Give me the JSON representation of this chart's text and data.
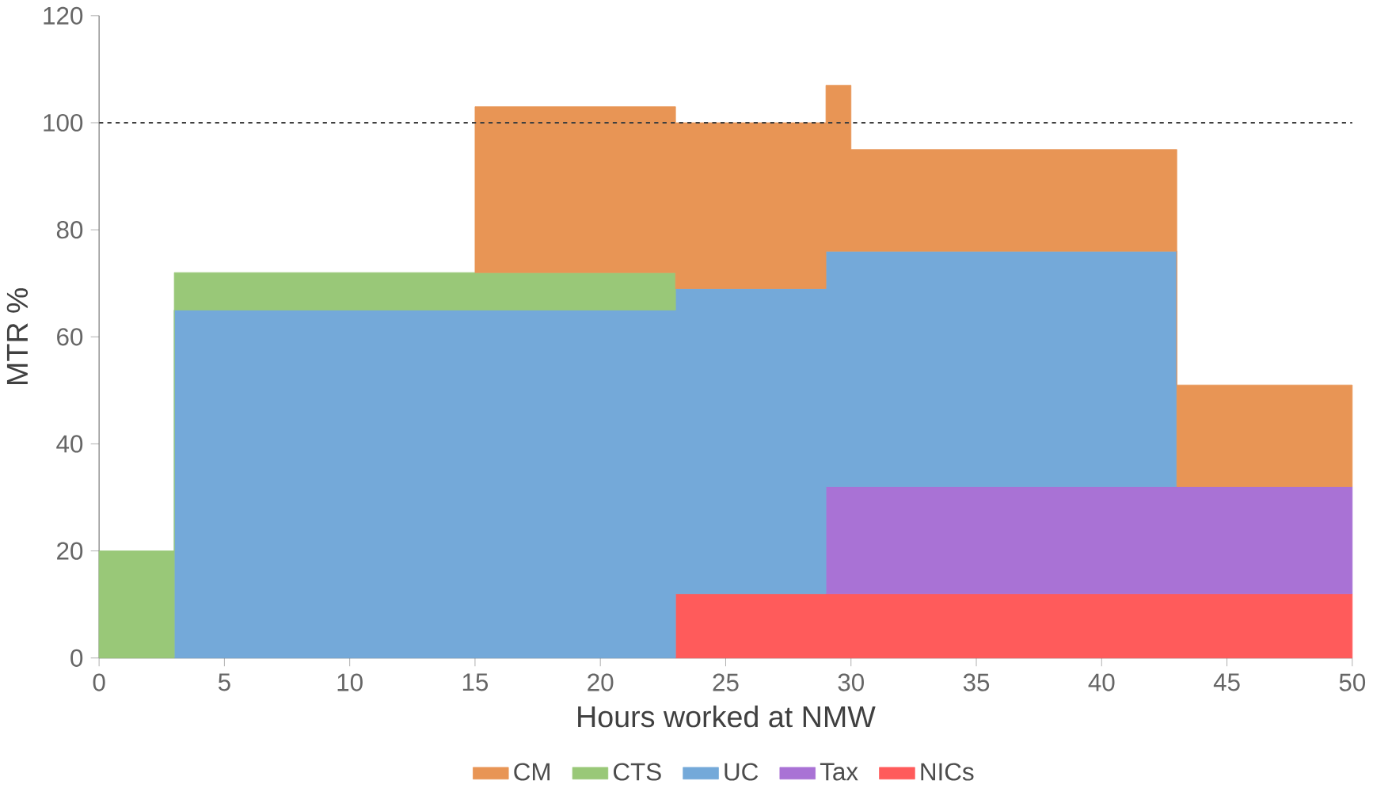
{
  "chart_data": {
    "type": "area",
    "stacked": true,
    "xlabel": "Hours worked at NMW",
    "ylabel": "MTR %",
    "x": [
      0,
      3,
      3,
      15,
      15,
      23,
      23,
      29,
      29,
      30,
      30,
      43,
      43,
      50
    ],
    "series": [
      {
        "name": "NICs",
        "color": "#ff5b5b",
        "values": [
          null,
          null,
          null,
          null,
          null,
          null,
          12,
          12,
          12,
          12,
          12,
          12,
          12,
          12
        ]
      },
      {
        "name": "Tax",
        "color": "#a972d5",
        "values": [
          null,
          null,
          null,
          null,
          null,
          null,
          null,
          null,
          20,
          20,
          20,
          20,
          20,
          20
        ]
      },
      {
        "name": "UC",
        "color": "#74a9d9",
        "values": [
          null,
          null,
          65,
          65,
          65,
          65,
          57,
          57,
          44,
          44,
          44,
          44,
          null,
          null
        ]
      },
      {
        "name": "CTS",
        "color": "#99c878",
        "values": [
          20,
          20,
          7,
          7,
          7,
          7,
          null,
          null,
          null,
          null,
          null,
          null,
          null,
          null
        ]
      },
      {
        "name": "CM",
        "color": "#e89555",
        "values": [
          null,
          null,
          null,
          null,
          31,
          31,
          31,
          31,
          31,
          31,
          19,
          19,
          19,
          19
        ]
      }
    ],
    "xlim": [
      0,
      50
    ],
    "xticks": [
      0,
      5,
      10,
      15,
      20,
      25,
      30,
      35,
      40,
      45,
      50
    ],
    "ylim": [
      0,
      120
    ],
    "yticks": [
      0,
      20,
      40,
      60,
      80,
      100,
      120
    ],
    "ref_lines": [
      {
        "axis": "y",
        "value": 100,
        "color": "#404040",
        "line_style": "dotted"
      }
    ],
    "legend": "bottom",
    "grid": false
  }
}
